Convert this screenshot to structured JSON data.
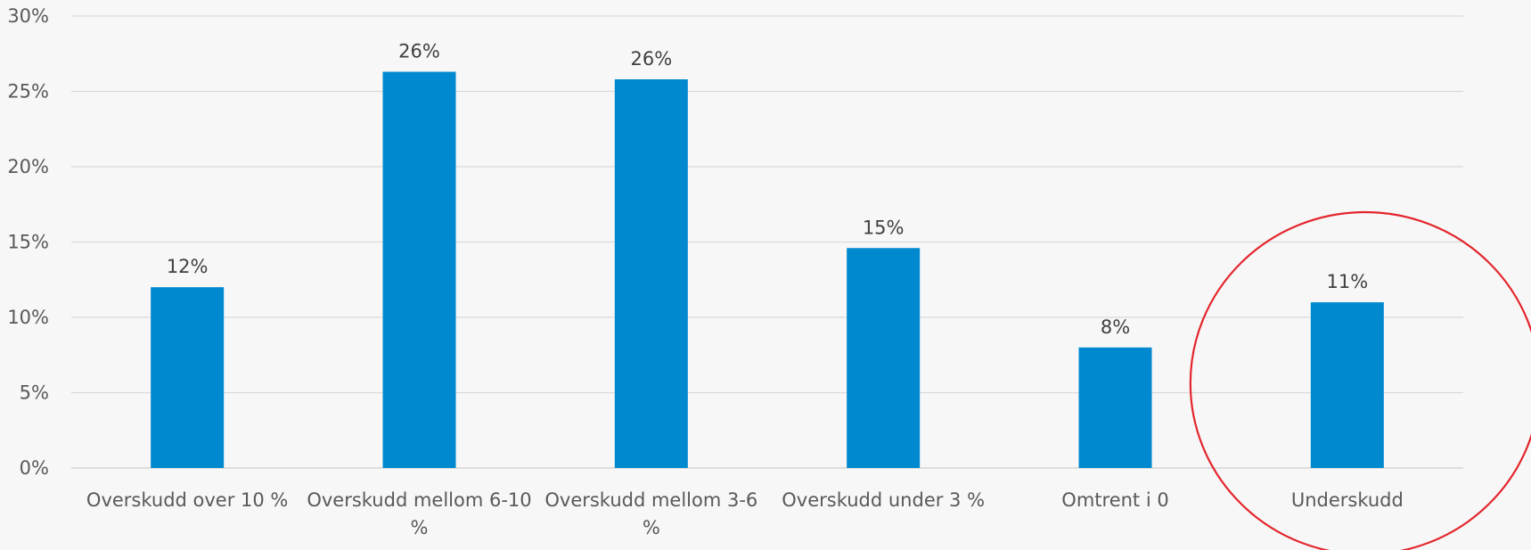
{
  "chart_data": {
    "type": "bar",
    "title": "",
    "xlabel": "",
    "ylabel": "",
    "categories": [
      [
        "Overskudd over 10 %"
      ],
      [
        "Overskudd mellom 6-10",
        "%"
      ],
      [
        "Overskudd mellom 3-6",
        "%"
      ],
      [
        "Overskudd under 3 %"
      ],
      [
        "Omtrent i 0"
      ],
      [
        "Underskudd"
      ]
    ],
    "values": [
      12,
      26.3,
      25.8,
      14.6,
      8,
      11
    ],
    "data_labels": [
      "12%",
      "26%",
      "26%",
      "15%",
      "8%",
      "11%"
    ],
    "ylim": [
      0,
      30
    ],
    "yticks": [
      0,
      5,
      10,
      15,
      20,
      25,
      30
    ],
    "ytick_labels": [
      "0%",
      "5%",
      "10%",
      "15%",
      "20%",
      "25%",
      "30%"
    ],
    "grid": true,
    "bar_color": "#0089cf",
    "highlight": {
      "category_index": 5,
      "shape": "circle",
      "color": "#e3262d"
    }
  }
}
